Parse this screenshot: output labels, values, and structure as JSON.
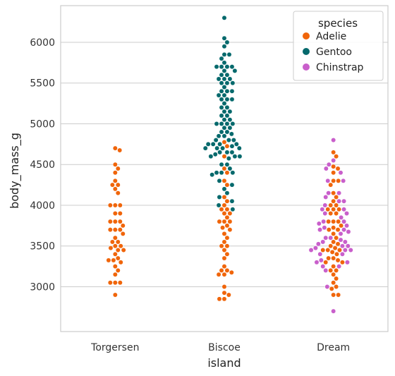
{
  "chart_data": {
    "type": "scatter",
    "subtype": "swarm",
    "title": "",
    "xlabel": "island",
    "ylabel": "body_mass_g",
    "categories": [
      "Torgersen",
      "Biscoe",
      "Dream"
    ],
    "ylim": [
      2450,
      6450
    ],
    "yticks": [
      3000,
      3500,
      4000,
      4500,
      5000,
      5500,
      6000
    ],
    "grid": "horizontal",
    "legend": {
      "title": "species",
      "placement": "top-right"
    },
    "series": [
      {
        "name": "Adelie",
        "color": "#f0650a",
        "values_by_category": {
          "Torgersen": [
            4700,
            4675,
            4500,
            4450,
            4400,
            4300,
            4250,
            4250,
            4200,
            4150,
            4000,
            4000,
            4000,
            3900,
            3900,
            3800,
            3800,
            3800,
            3750,
            3700,
            3700,
            3700,
            3650,
            3600,
            3550,
            3550,
            3500,
            3500,
            3475,
            3450,
            3450,
            3400,
            3350,
            3325,
            3325,
            3300,
            3250,
            3200,
            3150,
            3050,
            3050,
            3050,
            2900
          ],
          "Biscoe": [
            4775,
            4725,
            4600,
            4450,
            4400,
            4300,
            4250,
            4100,
            4050,
            4000,
            3950,
            3950,
            3900,
            3900,
            3850,
            3800,
            3800,
            3800,
            3750,
            3725,
            3700,
            3650,
            3600,
            3550,
            3500,
            3500,
            3450,
            3400,
            3350,
            3250,
            3200,
            3200,
            3175,
            3150,
            3150,
            3000,
            2925,
            2900,
            2850,
            2850
          ],
          "Dream": [
            4650,
            4600,
            4475,
            4450,
            4400,
            4300,
            4300,
            4250,
            4150,
            4100,
            4050,
            4000,
            4000,
            3950,
            3950,
            3950,
            3900,
            3900,
            3800,
            3800,
            3800,
            3750,
            3725,
            3700,
            3700,
            3650,
            3600,
            3550,
            3525,
            3500,
            3475,
            3450,
            3450,
            3450,
            3425,
            3400,
            3350,
            3350,
            3325,
            3300,
            3300,
            3250,
            3200,
            3200,
            3150,
            3100,
            3050,
            3000,
            2975,
            2900,
            2900
          ]
        }
      },
      {
        "name": "Gentoo",
        "color": "#05696c",
        "values_by_category": {
          "Biscoe": [
            6300,
            6050,
            6000,
            5950,
            5850,
            5850,
            5800,
            5750,
            5700,
            5700,
            5700,
            5700,
            5650,
            5650,
            5600,
            5600,
            5550,
            5550,
            5550,
            5500,
            5500,
            5500,
            5450,
            5400,
            5400,
            5400,
            5350,
            5350,
            5300,
            5300,
            5300,
            5250,
            5200,
            5200,
            5150,
            5150,
            5100,
            5100,
            5050,
            5050,
            5000,
            5000,
            5000,
            5000,
            4950,
            4950,
            4900,
            4900,
            4875,
            4850,
            4850,
            4800,
            4800,
            4800,
            4750,
            4750,
            4750,
            4750,
            4725,
            4700,
            4700,
            4700,
            4700,
            4650,
            4650,
            4650,
            4625,
            4600,
            4600,
            4600,
            4575,
            4500,
            4500,
            4450,
            4400,
            4400,
            4400,
            4375,
            4300,
            4250,
            4200,
            4150,
            4100,
            4050,
            4000,
            3950
          ]
        }
      },
      {
        "name": "Chinstrap",
        "color": "#c95fcb",
        "values_by_category": {
          "Dream": [
            4800,
            4550,
            4500,
            4450,
            4400,
            4300,
            4300,
            4150,
            4150,
            4100,
            4050,
            4050,
            4000,
            3950,
            3950,
            3900,
            3900,
            3850,
            3800,
            3800,
            3775,
            3750,
            3725,
            3700,
            3700,
            3675,
            3650,
            3600,
            3600,
            3575,
            3550,
            3550,
            3525,
            3500,
            3500,
            3475,
            3450,
            3450,
            3450,
            3400,
            3400,
            3325,
            3300,
            3300,
            3250,
            3250,
            3200,
            3000,
            2700
          ]
        }
      }
    ]
  }
}
